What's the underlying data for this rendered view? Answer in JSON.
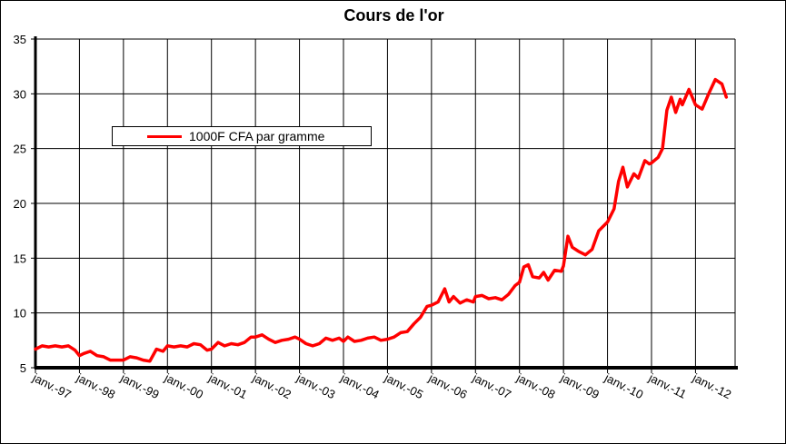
{
  "chart_data": {
    "type": "line",
    "title": "Cours de l'or",
    "xlabel": "",
    "ylabel": "",
    "ylim": [
      5,
      35
    ],
    "yticks": [
      5,
      10,
      15,
      20,
      25,
      30,
      35
    ],
    "grid": true,
    "legend_position": "upper-left",
    "x_tick_labels": [
      "janv.-97",
      "janv.-98",
      "janv.-99",
      "janv.-00",
      "janv.-01",
      "janv.-02",
      "janv.-03",
      "janv.-04",
      "janv.-05",
      "janv.-06",
      "janv.-07",
      "janv.-08",
      "janv.-09",
      "janv.-10",
      "janv.-11",
      "janv.-12"
    ],
    "series": [
      {
        "name": "1000F CFA par gramme",
        "color": "#ff0000",
        "points": [
          [
            1997.0,
            6.7
          ],
          [
            1997.15,
            7.0
          ],
          [
            1997.3,
            6.9
          ],
          [
            1997.45,
            7.0
          ],
          [
            1997.6,
            6.9
          ],
          [
            1997.75,
            7.0
          ],
          [
            1997.9,
            6.6
          ],
          [
            1998.0,
            6.1
          ],
          [
            1998.1,
            6.3
          ],
          [
            1998.25,
            6.5
          ],
          [
            1998.4,
            6.1
          ],
          [
            1998.55,
            6.0
          ],
          [
            1998.7,
            5.7
          ],
          [
            1998.85,
            5.7
          ],
          [
            1999.0,
            5.7
          ],
          [
            1999.15,
            6.0
          ],
          [
            1999.3,
            5.9
          ],
          [
            1999.45,
            5.7
          ],
          [
            1999.6,
            5.6
          ],
          [
            1999.75,
            6.7
          ],
          [
            1999.9,
            6.5
          ],
          [
            2000.0,
            7.0
          ],
          [
            2000.15,
            6.9
          ],
          [
            2000.3,
            7.0
          ],
          [
            2000.45,
            6.9
          ],
          [
            2000.6,
            7.2
          ],
          [
            2000.75,
            7.1
          ],
          [
            2000.9,
            6.6
          ],
          [
            2001.0,
            6.7
          ],
          [
            2001.15,
            7.3
          ],
          [
            2001.3,
            7.0
          ],
          [
            2001.45,
            7.2
          ],
          [
            2001.6,
            7.1
          ],
          [
            2001.75,
            7.3
          ],
          [
            2001.9,
            7.8
          ],
          [
            2002.0,
            7.8
          ],
          [
            2002.15,
            8.0
          ],
          [
            2002.3,
            7.6
          ],
          [
            2002.45,
            7.3
          ],
          [
            2002.6,
            7.5
          ],
          [
            2002.75,
            7.6
          ],
          [
            2002.9,
            7.8
          ],
          [
            2003.0,
            7.6
          ],
          [
            2003.15,
            7.2
          ],
          [
            2003.3,
            7.0
          ],
          [
            2003.45,
            7.2
          ],
          [
            2003.6,
            7.7
          ],
          [
            2003.75,
            7.5
          ],
          [
            2003.9,
            7.7
          ],
          [
            2004.0,
            7.4
          ],
          [
            2004.1,
            7.8
          ],
          [
            2004.25,
            7.4
          ],
          [
            2004.4,
            7.5
          ],
          [
            2004.55,
            7.7
          ],
          [
            2004.7,
            7.8
          ],
          [
            2004.85,
            7.5
          ],
          [
            2005.0,
            7.6
          ],
          [
            2005.15,
            7.8
          ],
          [
            2005.3,
            8.2
          ],
          [
            2005.45,
            8.3
          ],
          [
            2005.6,
            9.0
          ],
          [
            2005.75,
            9.6
          ],
          [
            2005.9,
            10.6
          ],
          [
            2006.0,
            10.7
          ],
          [
            2006.15,
            11.0
          ],
          [
            2006.3,
            12.2
          ],
          [
            2006.4,
            11.0
          ],
          [
            2006.5,
            11.5
          ],
          [
            2006.65,
            10.9
          ],
          [
            2006.8,
            11.2
          ],
          [
            2006.95,
            11.0
          ],
          [
            2007.0,
            11.5
          ],
          [
            2007.15,
            11.6
          ],
          [
            2007.3,
            11.3
          ],
          [
            2007.45,
            11.4
          ],
          [
            2007.6,
            11.2
          ],
          [
            2007.75,
            11.7
          ],
          [
            2007.9,
            12.5
          ],
          [
            2008.0,
            12.8
          ],
          [
            2008.1,
            14.2
          ],
          [
            2008.2,
            14.4
          ],
          [
            2008.3,
            13.3
          ],
          [
            2008.45,
            13.2
          ],
          [
            2008.55,
            13.7
          ],
          [
            2008.65,
            13.0
          ],
          [
            2008.8,
            13.9
          ],
          [
            2008.95,
            13.8
          ],
          [
            2009.0,
            14.3
          ],
          [
            2009.1,
            17.0
          ],
          [
            2009.2,
            16.0
          ],
          [
            2009.35,
            15.6
          ],
          [
            2009.5,
            15.3
          ],
          [
            2009.65,
            15.8
          ],
          [
            2009.8,
            17.5
          ],
          [
            2010.0,
            18.3
          ],
          [
            2010.15,
            19.5
          ],
          [
            2010.25,
            22.0
          ],
          [
            2010.35,
            23.3
          ],
          [
            2010.45,
            21.5
          ],
          [
            2010.6,
            22.7
          ],
          [
            2010.7,
            22.3
          ],
          [
            2010.85,
            23.9
          ],
          [
            2010.95,
            23.6
          ],
          [
            2011.0,
            23.7
          ],
          [
            2011.15,
            24.2
          ],
          [
            2011.25,
            25.0
          ],
          [
            2011.35,
            28.5
          ],
          [
            2011.45,
            29.7
          ],
          [
            2011.55,
            28.3
          ],
          [
            2011.65,
            29.5
          ],
          [
            2011.7,
            29.0
          ],
          [
            2011.85,
            30.4
          ],
          [
            2012.0,
            29.0
          ],
          [
            2012.15,
            28.6
          ],
          [
            2012.3,
            30.0
          ],
          [
            2012.45,
            31.3
          ],
          [
            2012.6,
            30.9
          ],
          [
            2012.7,
            29.7
          ]
        ]
      }
    ]
  }
}
